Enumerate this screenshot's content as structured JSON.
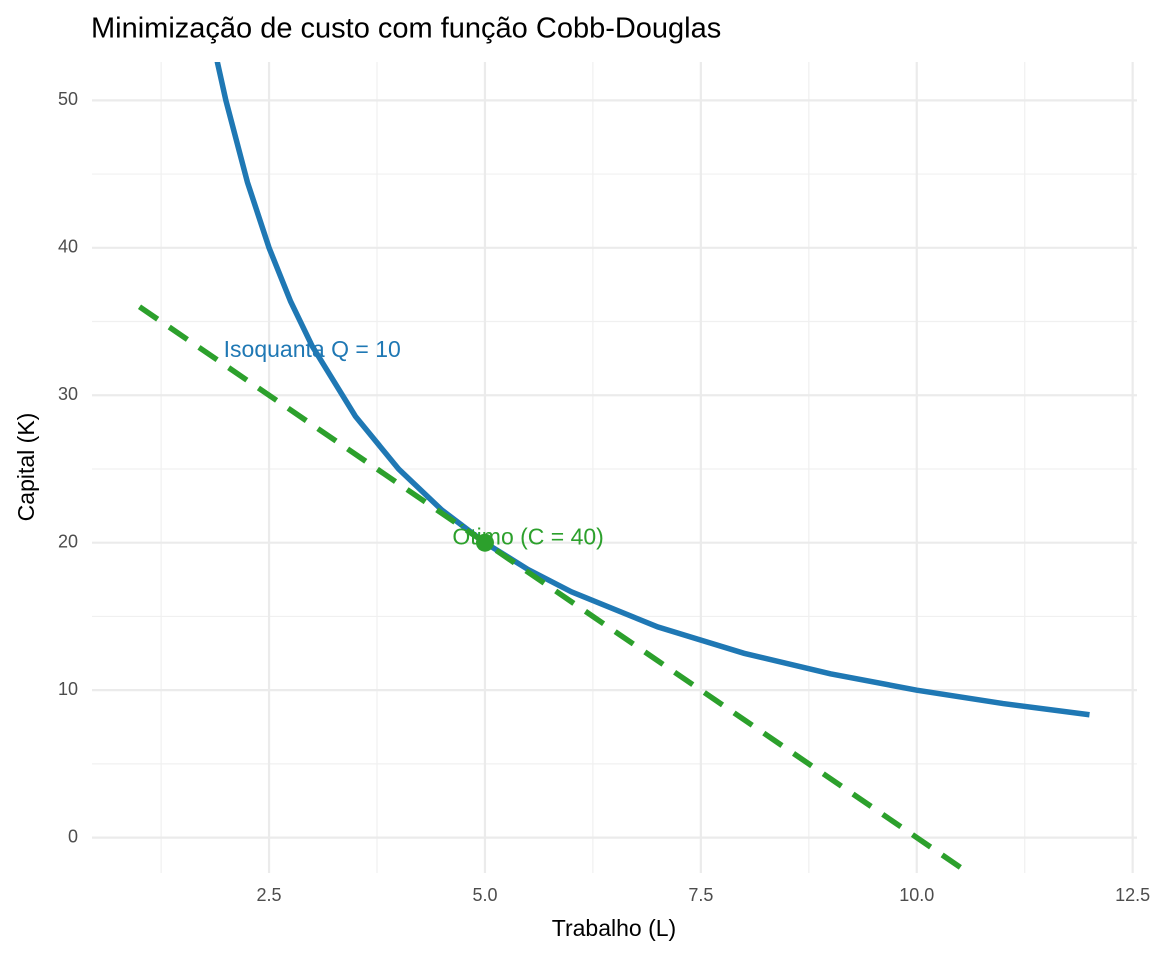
{
  "chart_data": {
    "type": "line",
    "title": "Minimização de custo com função Cobb-Douglas",
    "x_label": "Trabalho (L)",
    "y_label": "Capital (K)",
    "xlim": [
      0.45,
      12.55
    ],
    "ylim": [
      -2.4,
      52.6
    ],
    "xticks": [
      2.5,
      {
        "value": 5,
        "label": "5.0"
      },
      7.5,
      {
        "value": 10,
        "label": "10.0"
      },
      12.5
    ],
    "yticks": [
      0,
      10,
      20,
      30,
      40,
      50
    ],
    "x_minor_ticks": [
      1.25,
      3.75,
      6.25,
      8.75,
      11.25
    ],
    "y_minor_ticks": [
      5,
      15,
      25,
      35,
      45
    ],
    "grid": true,
    "series": [
      {
        "color": "#1f78b4",
        "style": "solid",
        "x": [
          1.9,
          2,
          2.25,
          2.5,
          2.75,
          3,
          3.5,
          4,
          4.5,
          5,
          5.5,
          6,
          7,
          8,
          9,
          10,
          11,
          12
        ],
        "values": [
          52.63,
          50,
          44.44,
          40,
          36.36,
          33.33,
          28.57,
          25,
          22.22,
          20,
          18.18,
          16.67,
          14.29,
          12.5,
          11.11,
          10,
          9.09,
          8.33
        ]
      },
      {
        "color": "#2ca02c",
        "style": "dashed",
        "x": [
          1,
          10.6
        ],
        "values": [
          36,
          -2.4
        ]
      }
    ],
    "points": [
      {
        "x": 5,
        "y": 20,
        "color": "#2ca02c"
      }
    ],
    "annotations": [
      {
        "text": "Isoquanta Q = 10",
        "x": 3,
        "y": 33,
        "color": "#1f78b4"
      },
      {
        "text": "Ótimo (C = 40)",
        "x": 5.5,
        "y": 20.3,
        "color": "#2ca02c"
      }
    ]
  }
}
